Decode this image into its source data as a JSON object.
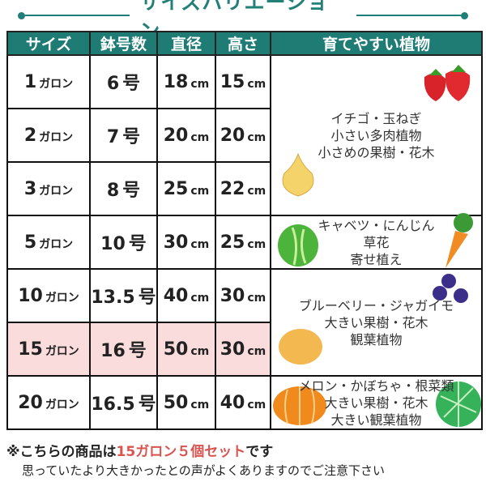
{
  "title": "サイズバリエーション",
  "colors": {
    "header": "#1e7c75",
    "highlight_row": "#fbdcdc",
    "note_accent": "#d9534f"
  },
  "table": {
    "headers": [
      "サイズ",
      "鉢号数",
      "直径",
      "高さ",
      "育てやすい植物"
    ],
    "rows": [
      {
        "size": "1",
        "size_unit": "ガロン",
        "pot": "6",
        "pot_unit": "号",
        "diameter": "18",
        "height": "15",
        "unit": "cm"
      },
      {
        "size": "2",
        "size_unit": "ガロン",
        "pot": "7",
        "pot_unit": "号",
        "diameter": "20",
        "height": "20",
        "unit": "cm"
      },
      {
        "size": "3",
        "size_unit": "ガロン",
        "pot": "8",
        "pot_unit": "号",
        "diameter": "25",
        "height": "22",
        "unit": "cm"
      },
      {
        "size": "5",
        "size_unit": "ガロン",
        "pot": "10",
        "pot_unit": "号",
        "diameter": "30",
        "height": "25",
        "unit": "cm"
      },
      {
        "size": "10",
        "size_unit": "ガロン",
        "pot": "13.5",
        "pot_unit": "号",
        "diameter": "40",
        "height": "30",
        "unit": "cm"
      },
      {
        "size": "15",
        "size_unit": "ガロン",
        "pot": "16",
        "pot_unit": "号",
        "diameter": "50",
        "height": "30",
        "unit": "cm",
        "highlighted": true
      },
      {
        "size": "20",
        "size_unit": "ガロン",
        "pot": "16.5",
        "pot_unit": "号",
        "diameter": "50",
        "height": "40",
        "unit": "cm"
      }
    ],
    "plants": [
      {
        "lines": [
          "イチゴ・玉ねぎ",
          "小さい多肉植物",
          "小さめの果樹・花木"
        ],
        "icons": [
          "strawberry-icon",
          "onion-icon"
        ]
      },
      {
        "lines": [
          "キャベツ・にんじん",
          "草花",
          "寄せ植え"
        ],
        "icons": [
          "cabbage-icon",
          "carrot-icon"
        ]
      },
      {
        "lines": [
          "ブルーベリー・ジャガイモ",
          "大きい果樹・花木",
          "観葉植物"
        ],
        "icons": [
          "blueberry-icon",
          "potato-icon"
        ]
      },
      {
        "lines": [
          "メロン・かぼちゃ・根菜類",
          "大きい果樹・花木",
          "大きい観葉植物"
        ],
        "icons": [
          "pumpkin-icon",
          "melon-icon"
        ]
      }
    ]
  },
  "note": {
    "prefix": "※こちらの商品は",
    "highlight": "15ガロン５個セット",
    "suffix": "です",
    "sub": "思っていたより大きかったとの声がよくありますのでご注意下さい"
  }
}
